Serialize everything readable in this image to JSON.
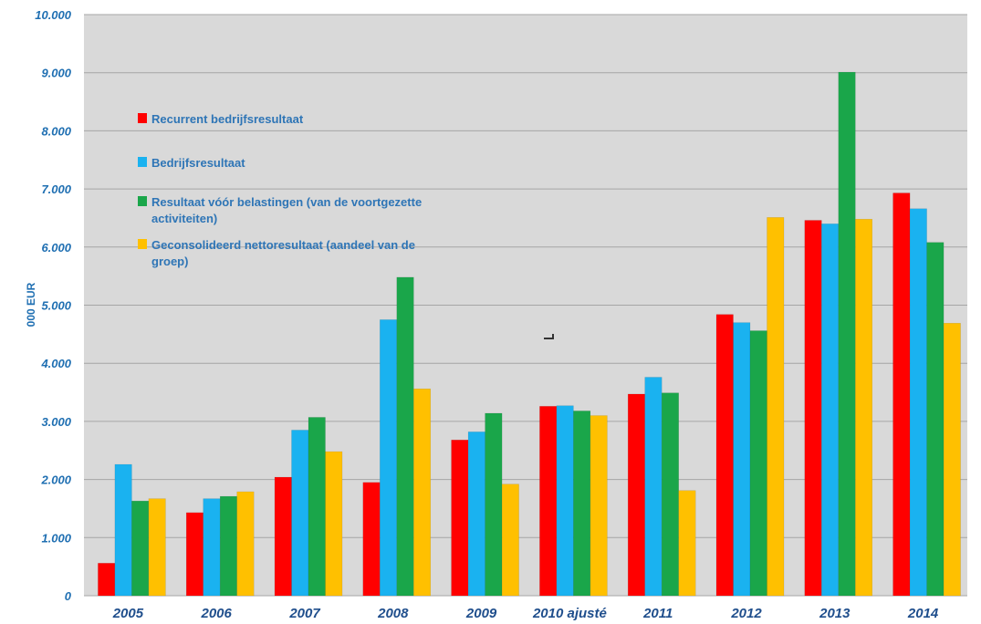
{
  "chart_data": {
    "type": "bar",
    "ylabel": "000 EUR",
    "ylim": [
      0,
      10000
    ],
    "yticks": [
      "0",
      "1.000",
      "2.000",
      "3.000",
      "4.000",
      "5.000",
      "6.000",
      "7.000",
      "8.000",
      "9.000",
      "10.000"
    ],
    "grid": true,
    "legend_position": "upper-left",
    "categories": [
      "2005",
      "2006",
      "2007",
      "2008",
      "2009",
      "2010 ajusté",
      "2011",
      "2012",
      "2013",
      "2014"
    ],
    "series": [
      {
        "name": "Recurrent bedrijfsresultaat",
        "color": "#ff0000",
        "values": [
          560,
          1430,
          2040,
          1950,
          2680,
          3260,
          3470,
          4840,
          6460,
          6930
        ]
      },
      {
        "name": "Bedrijfsresultaat",
        "color": "#1ab2f0",
        "values": [
          2260,
          1670,
          2850,
          4750,
          2820,
          3270,
          3760,
          4700,
          6400,
          6660
        ]
      },
      {
        "name": "Resultaat vóór belastingen (van de voortgezette activiteiten)",
        "color": "#1aa64a",
        "legend_lines": [
          "Resultaat vóór belastingen (van de voortgezette",
          "activiteiten)"
        ],
        "values": [
          1630,
          1710,
          3070,
          5480,
          3140,
          3180,
          3490,
          4560,
          9010,
          6080
        ]
      },
      {
        "name": "Geconsolideerd nettoresultaat (aandeel van de groep)",
        "color": "#ffc000",
        "legend_lines": [
          "Geconsolideerd nettoresultaat (aandeel van de",
          "groep)"
        ],
        "values": [
          1670,
          1790,
          2480,
          3560,
          1920,
          3100,
          1810,
          6510,
          6480,
          4690
        ]
      }
    ]
  }
}
